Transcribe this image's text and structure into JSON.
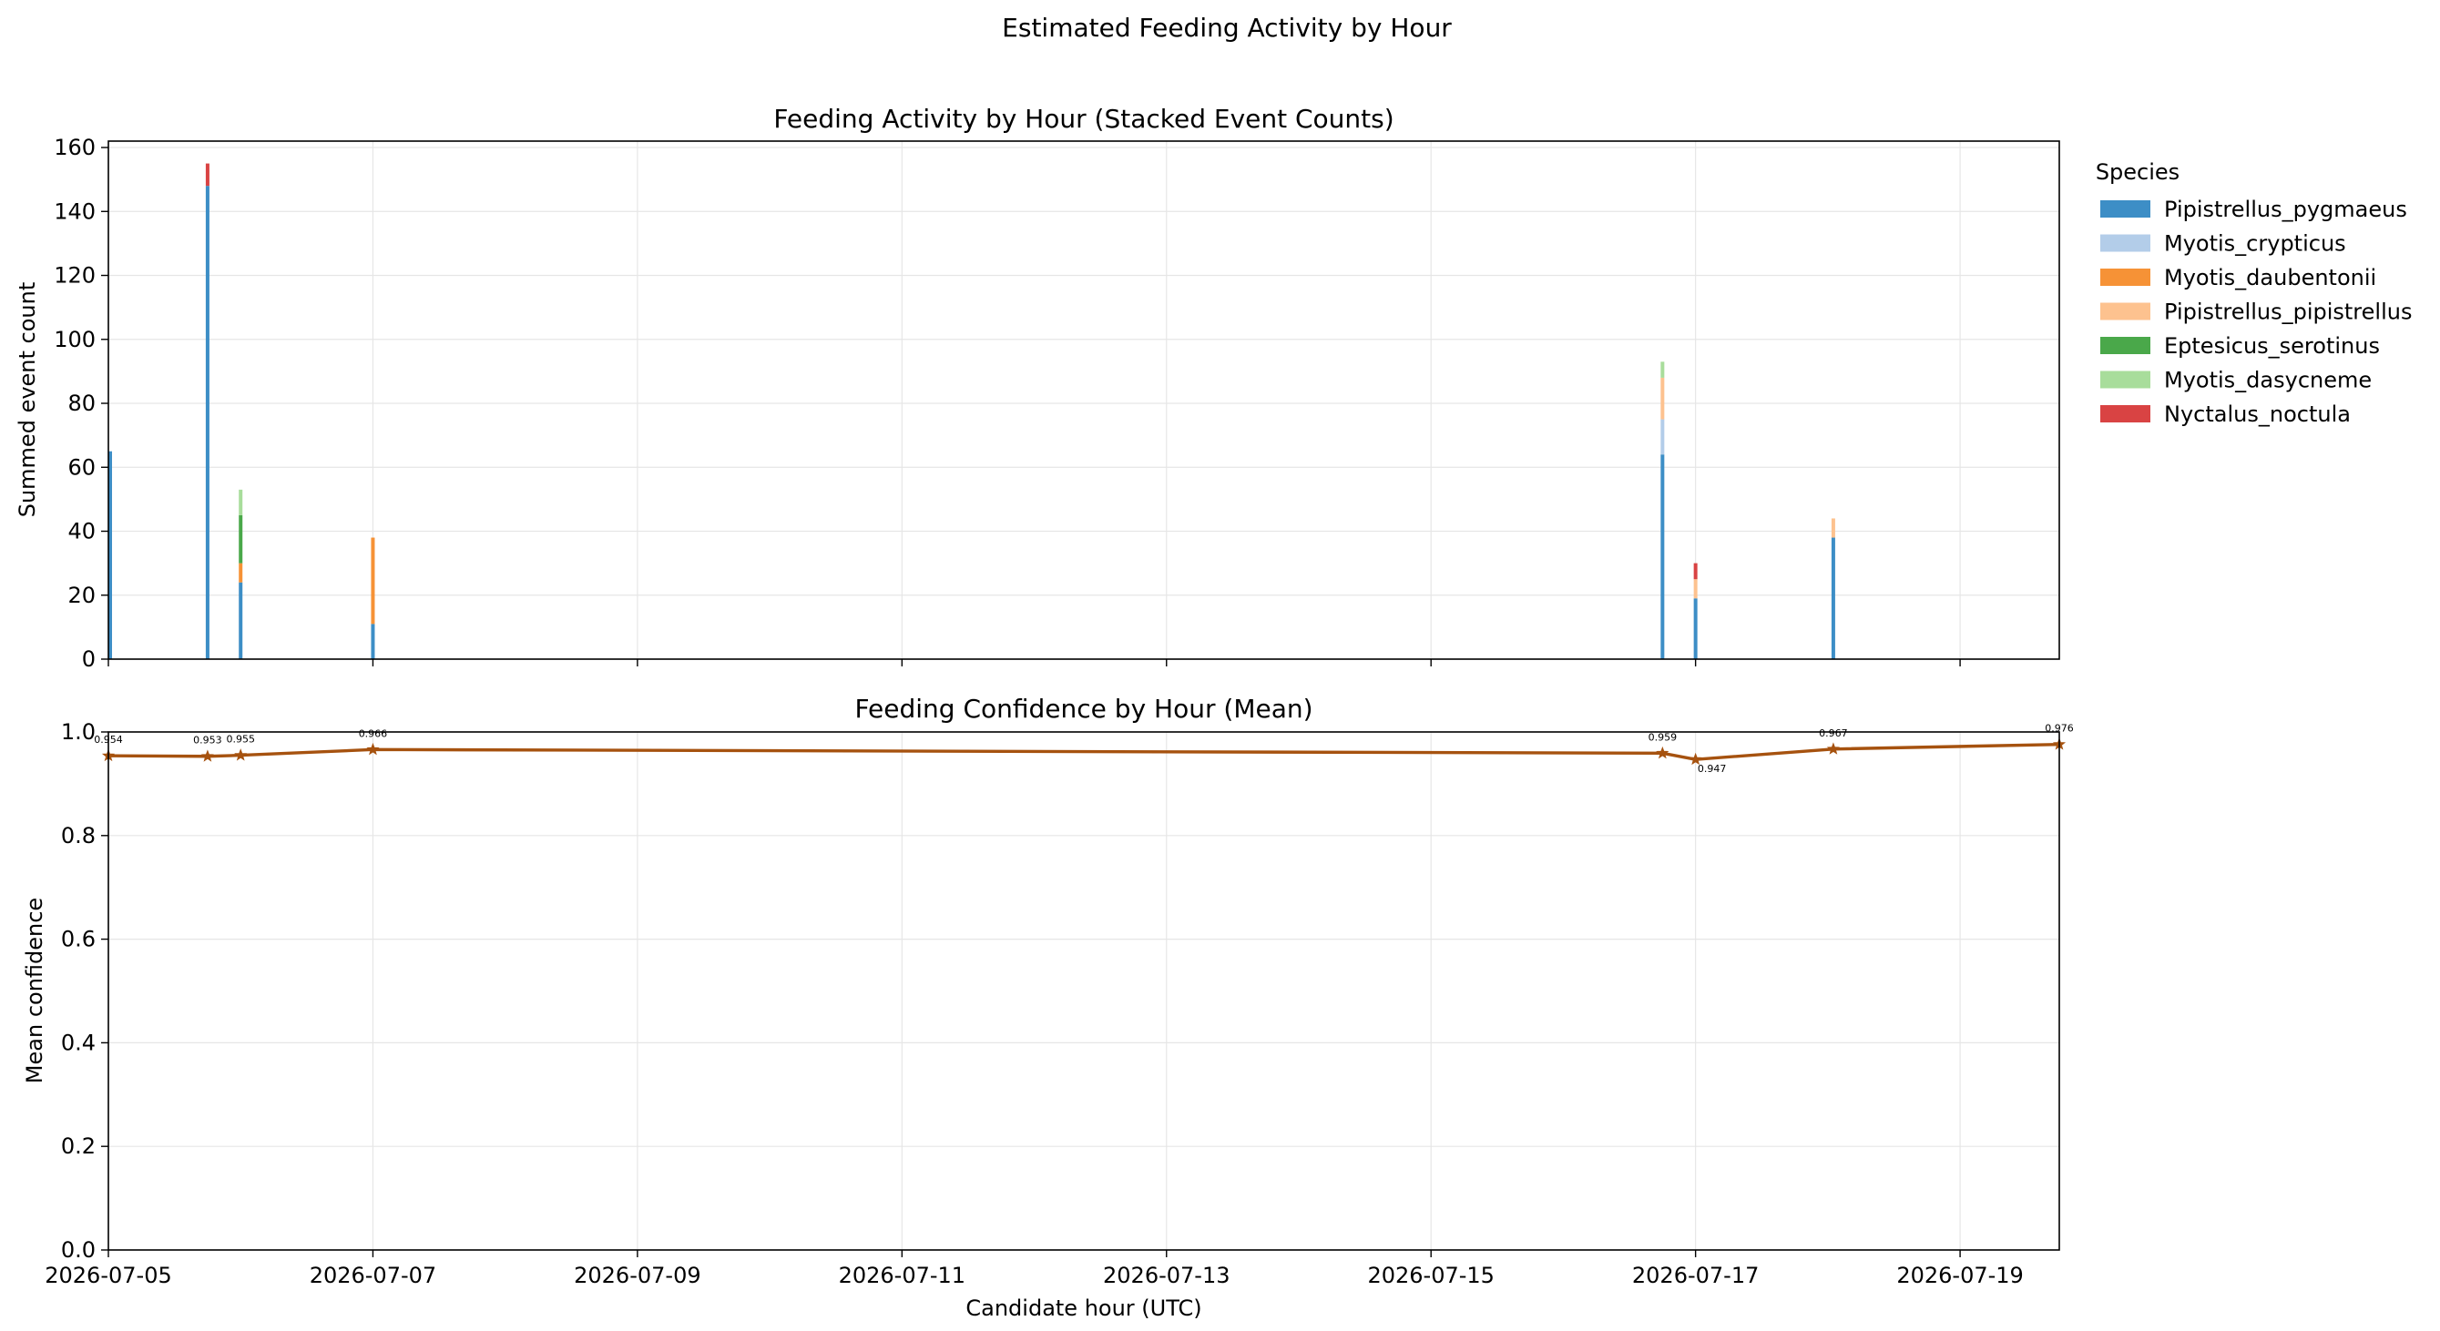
{
  "figure": {
    "suptitle": "Estimated Feeding Activity by Hour",
    "xlabel": "Candidate hour (UTC)"
  },
  "chart_data": [
    {
      "type": "bar",
      "stacked": true,
      "title": "Feeding Activity by Hour (Stacked Event Counts)",
      "xlabel": "",
      "ylabel": "Summed event count",
      "xlim": [
        "2026-07-05T00:00",
        "2026-07-19T18:00"
      ],
      "ylim": [
        0,
        162
      ],
      "yticks": [
        0,
        20,
        40,
        60,
        80,
        100,
        120,
        140,
        160
      ],
      "grid": true,
      "legend": {
        "title": "Species",
        "placement": "outside-right"
      },
      "x": [
        "2026-07-05T00:00",
        "2026-07-05T18:00",
        "2026-07-06T00:00",
        "2026-07-07T00:00",
        "2026-07-16T18:00",
        "2026-07-17T00:00",
        "2026-07-18T01:00"
      ],
      "series": [
        {
          "name": "Pipistrellus_pygmaeus",
          "color": "#3d8ec6",
          "values": [
            65,
            148,
            24,
            11,
            64,
            19,
            38
          ]
        },
        {
          "name": "Myotis_crypticus",
          "color": "#b3cde9",
          "values": [
            0,
            0,
            0,
            0,
            11,
            0,
            0
          ]
        },
        {
          "name": "Myotis_daubentonii",
          "color": "#f69236",
          "values": [
            0,
            0,
            6,
            27,
            0,
            0,
            0
          ]
        },
        {
          "name": "Pipistrellus_pipistrellus",
          "color": "#fdc28f",
          "values": [
            0,
            0,
            0,
            0,
            13,
            6,
            6
          ]
        },
        {
          "name": "Eptesicus_serotinus",
          "color": "#4aa84a",
          "values": [
            0,
            0,
            15,
            0,
            0,
            0,
            0
          ]
        },
        {
          "name": "Myotis_dasycneme",
          "color": "#a8dd9b",
          "values": [
            0,
            0,
            8,
            0,
            5,
            0,
            0
          ]
        },
        {
          "name": "Nyctalus_noctula",
          "color": "#d94343",
          "values": [
            0,
            7,
            0,
            0,
            0,
            5,
            0
          ]
        }
      ]
    },
    {
      "type": "line",
      "title": "Feeding Confidence by Hour (Mean)",
      "xlabel": "Candidate hour (UTC)",
      "ylabel": "Mean confidence",
      "xlim": [
        "2026-07-05T00:00",
        "2026-07-19T18:00"
      ],
      "ylim": [
        0,
        1
      ],
      "yticks": [
        "0.0",
        "0.2",
        "0.4",
        "0.6",
        "0.8",
        "1.0"
      ],
      "xticks": [
        "2026-07-05",
        "2026-07-07",
        "2026-07-09",
        "2026-07-11",
        "2026-07-13",
        "2026-07-15",
        "2026-07-17",
        "2026-07-19"
      ],
      "grid": true,
      "marker": "star",
      "color": "#a6520f",
      "series": [
        {
          "x": [
            "2026-07-05T00:00",
            "2026-07-05T18:00",
            "2026-07-06T00:00",
            "2026-07-07T00:00",
            "2026-07-16T18:00",
            "2026-07-17T00:00",
            "2026-07-18T01:00",
            "2026-07-19T18:00"
          ],
          "values": [
            0.954,
            0.953,
            0.955,
            0.966,
            0.959,
            0.947,
            0.967,
            0.976
          ],
          "labels": [
            "0.954",
            "0.953",
            "0.955",
            "0.966",
            "0.959",
            "0.947",
            "0.967",
            "0.976"
          ]
        }
      ]
    }
  ]
}
